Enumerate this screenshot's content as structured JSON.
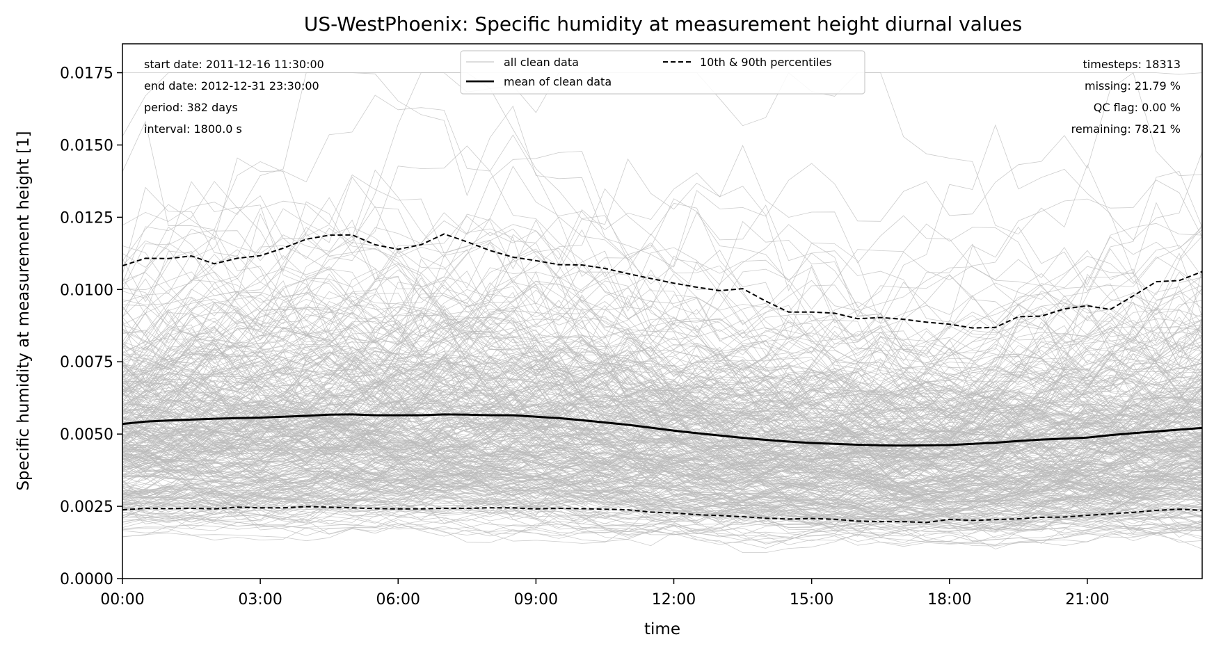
{
  "chart_data": {
    "type": "line",
    "title": "US-WestPhoenix: Specific humidity at measurement height diurnal values",
    "xlabel": "time",
    "ylabel": "Specific humidity at measurement height [1]",
    "xlim": [
      0,
      23.5
    ],
    "ylim": [
      0,
      0.0185
    ],
    "x_ticks": [
      0,
      3,
      6,
      9,
      12,
      15,
      18,
      21
    ],
    "x_tick_labels": [
      "00:00",
      "03:00",
      "06:00",
      "09:00",
      "12:00",
      "15:00",
      "18:00",
      "21:00"
    ],
    "y_ticks": [
      0,
      0.0025,
      0.005,
      0.0075,
      0.01,
      0.0125,
      0.015,
      0.0175
    ],
    "y_tick_labels": [
      "0.0000",
      "0.0025",
      "0.0050",
      "0.0075",
      "0.0100",
      "0.0125",
      "0.0150",
      "0.0175"
    ],
    "grid": false,
    "legend_position": "top-center",
    "x": [
      0,
      0.5,
      1,
      1.5,
      2,
      2.5,
      3,
      3.5,
      4,
      4.5,
      5,
      5.5,
      6,
      6.5,
      7,
      7.5,
      8,
      8.5,
      9,
      9.5,
      10,
      10.5,
      11,
      11.5,
      12,
      12.5,
      13,
      13.5,
      14,
      14.5,
      15,
      15.5,
      16,
      16.5,
      17,
      17.5,
      18,
      18.5,
      19,
      19.5,
      20,
      20.5,
      21,
      21.5,
      22,
      22.5,
      23,
      23.5
    ],
    "series": [
      {
        "name": "mean of clean data",
        "color": "#000000",
        "style": "solid",
        "values": [
          0.00535,
          0.00543,
          0.00547,
          0.0055,
          0.00553,
          0.00555,
          0.00557,
          0.0056,
          0.00563,
          0.00567,
          0.00568,
          0.00565,
          0.00565,
          0.00565,
          0.00568,
          0.00567,
          0.00565,
          0.00565,
          0.0056,
          0.00555,
          0.00548,
          0.0054,
          0.00532,
          0.00522,
          0.00512,
          0.00503,
          0.00495,
          0.00487,
          0.0048,
          0.00474,
          0.00469,
          0.00466,
          0.00463,
          0.00461,
          0.0046,
          0.00461,
          0.00462,
          0.00466,
          0.0047,
          0.00476,
          0.00481,
          0.00484,
          0.00488,
          0.00496,
          0.00503,
          0.00509,
          0.00515,
          0.00521
        ]
      },
      {
        "name": "10th & 90th percentiles",
        "color": "#000000",
        "style": "dashed",
        "values": [
          0.01082,
          0.01108,
          0.01107,
          0.01116,
          0.01089,
          0.01108,
          0.01117,
          0.01143,
          0.01174,
          0.01188,
          0.01189,
          0.01155,
          0.01139,
          0.01155,
          0.01192,
          0.01165,
          0.01135,
          0.01112,
          0.011,
          0.01086,
          0.01085,
          0.01073,
          0.01055,
          0.01038,
          0.01022,
          0.01008,
          0.00996,
          0.01003,
          0.0096,
          0.00922,
          0.00922,
          0.00918,
          0.00899,
          0.00903,
          0.00897,
          0.00887,
          0.0088,
          0.00867,
          0.00869,
          0.00906,
          0.00908,
          0.00933,
          0.00944,
          0.00931,
          0.00978,
          0.01027,
          0.01031,
          0.01062
        ]
      },
      {
        "name": "",
        "color": "#000000",
        "style": "dashed",
        "values": [
          0.00238,
          0.00243,
          0.00242,
          0.00243,
          0.00241,
          0.00247,
          0.00245,
          0.00245,
          0.00249,
          0.00247,
          0.00245,
          0.00242,
          0.00241,
          0.00241,
          0.00243,
          0.00243,
          0.00245,
          0.00245,
          0.00241,
          0.00243,
          0.00242,
          0.0024,
          0.00238,
          0.0023,
          0.00227,
          0.00221,
          0.00218,
          0.00214,
          0.00209,
          0.00206,
          0.00208,
          0.00205,
          0.00199,
          0.00197,
          0.00197,
          0.00194,
          0.00205,
          0.00201,
          0.00204,
          0.00207,
          0.00212,
          0.00213,
          0.00219,
          0.00224,
          0.00229,
          0.00236,
          0.0024,
          0.00236
        ]
      }
    ],
    "background_lines": {
      "name": "all clean data",
      "color": "#bbbbbb",
      "count": 380,
      "description_range": [
        0.0009,
        0.0175
      ]
    }
  },
  "info_left": {
    "start": "start date: 2011-12-16 11:30:00",
    "end": "end date: 2012-12-31 23:30:00",
    "period": "period: 382 days",
    "interval": "interval: 1800.0 s"
  },
  "info_right": {
    "timesteps": "timesteps: 18313",
    "missing": "missing: 21.79 %",
    "qc": "QC flag: 0.00 %",
    "remaining": "remaining: 78.21 %"
  },
  "legend": {
    "all_clean": "all clean data",
    "mean": "mean of clean data",
    "percentiles": "10th & 90th percentiles"
  }
}
